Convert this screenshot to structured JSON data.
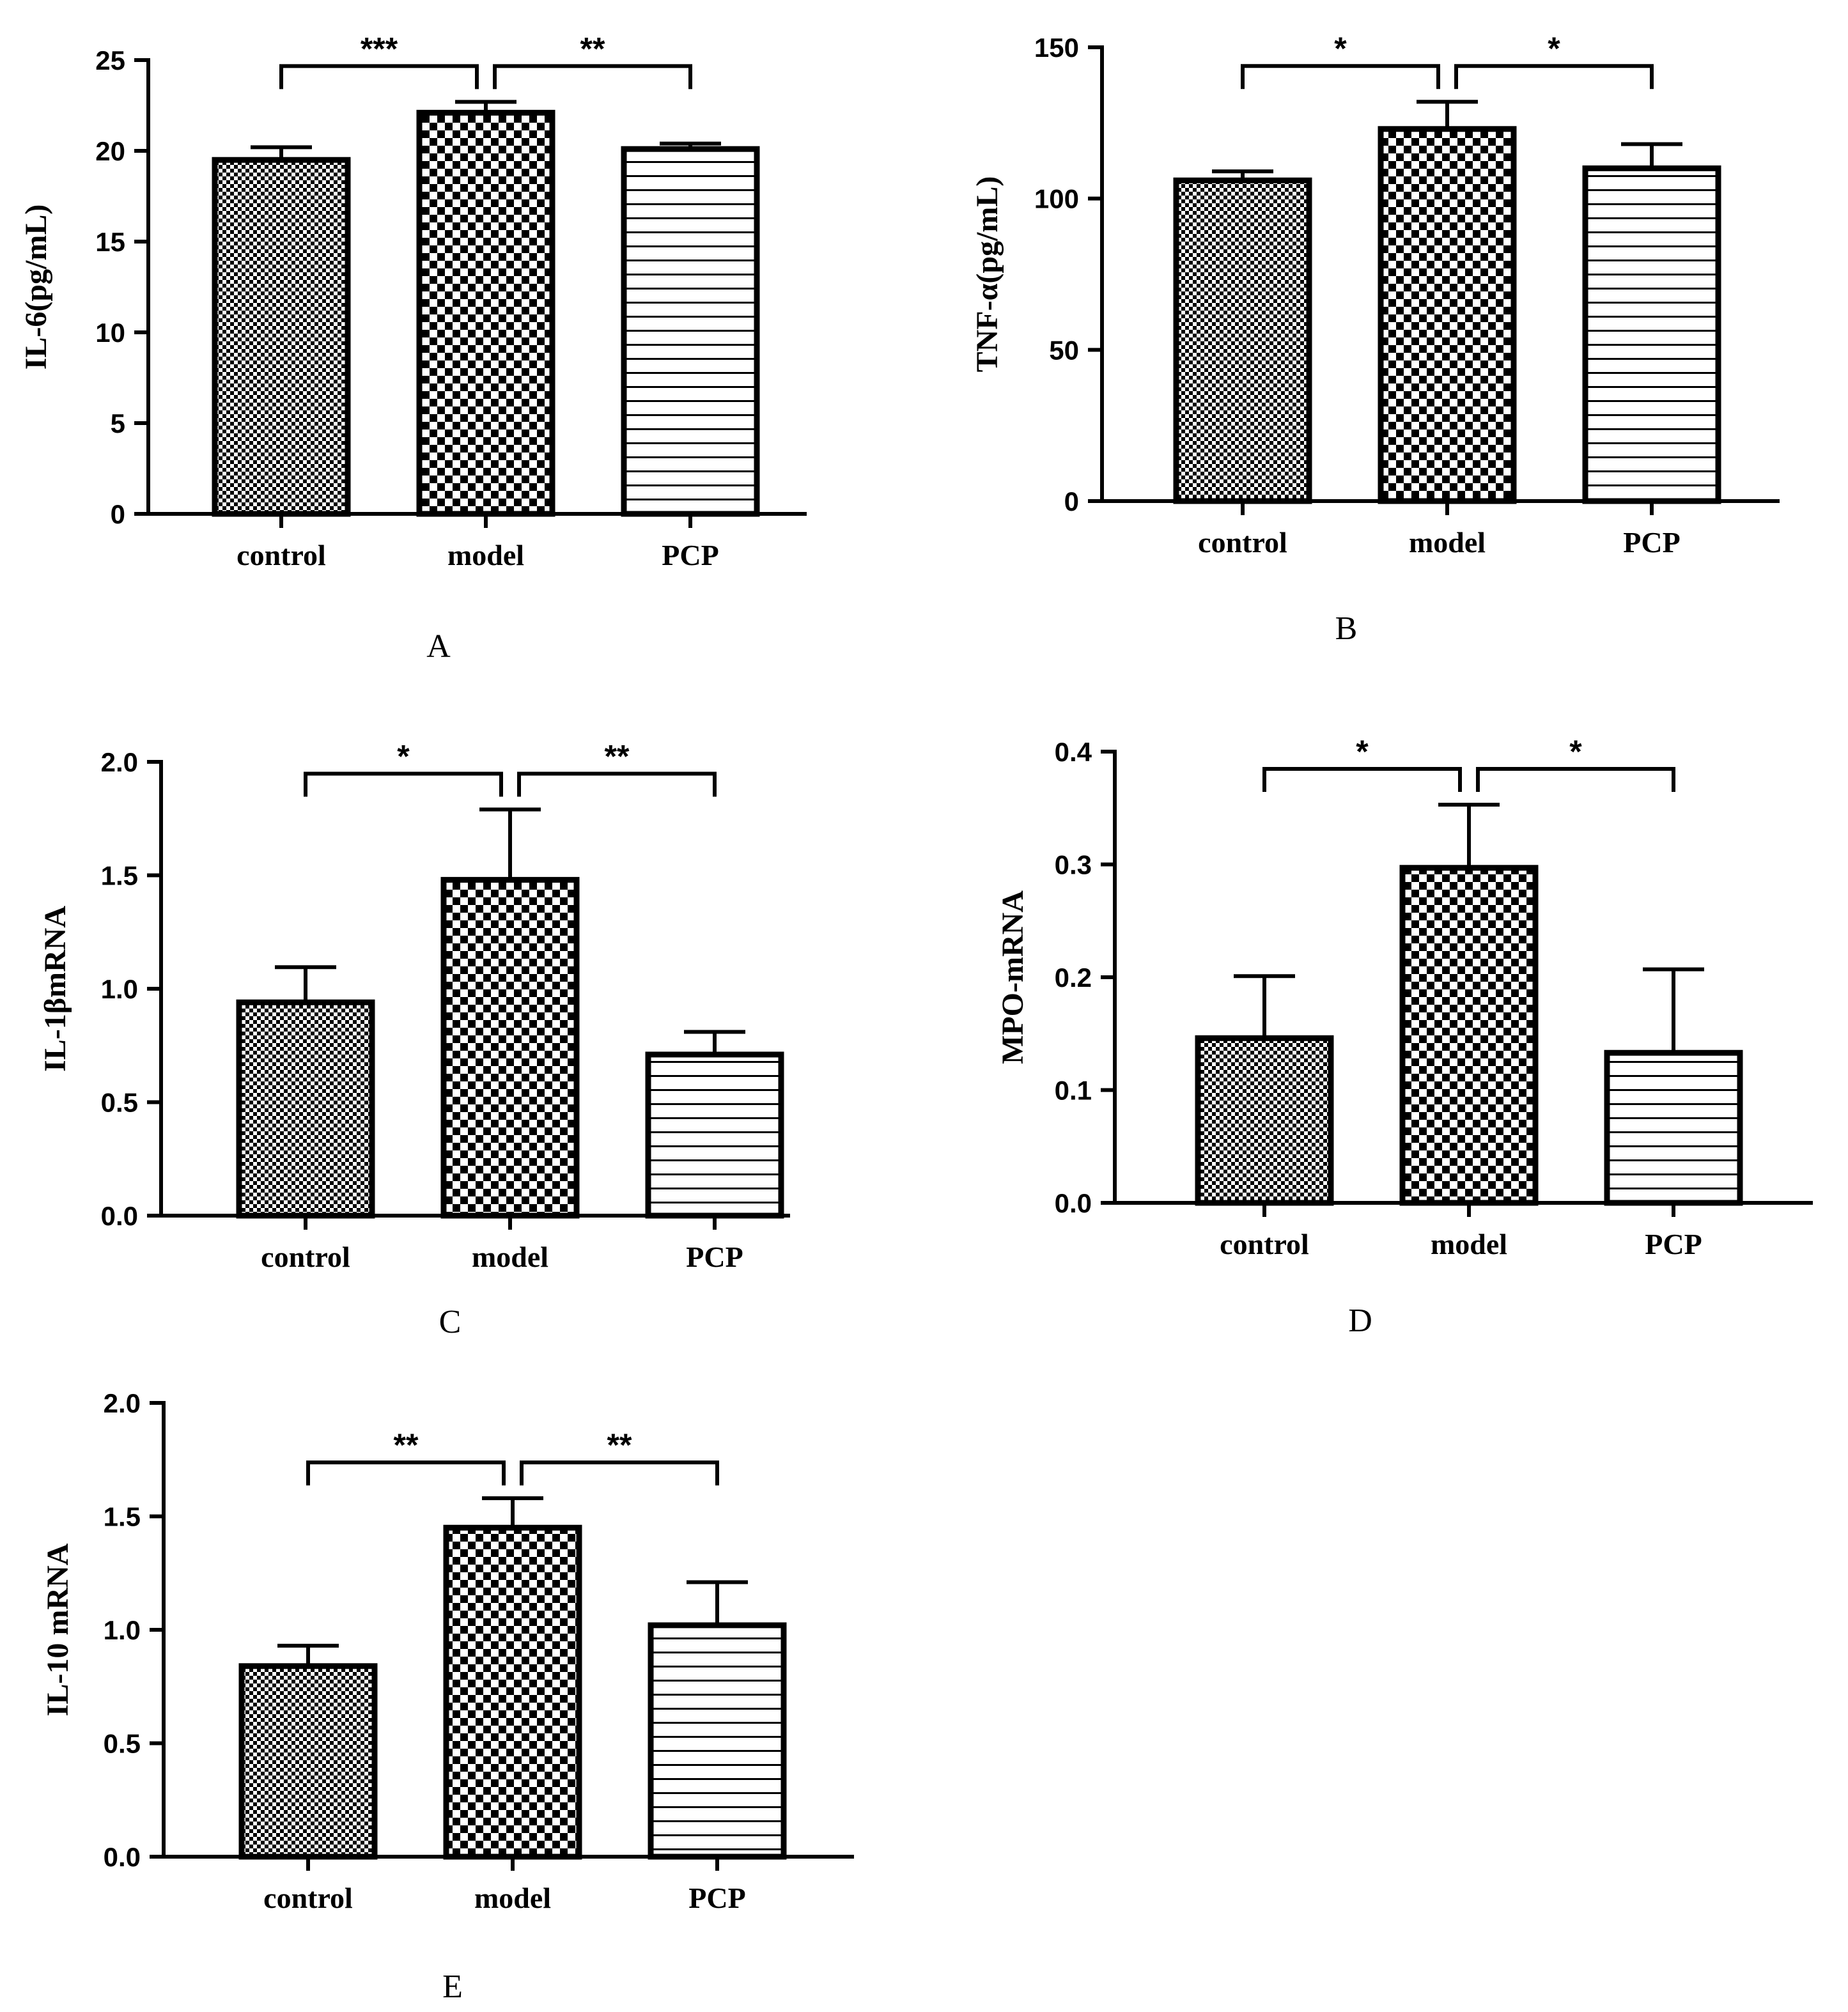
{
  "figure": {
    "colors": {
      "ink": "#000000",
      "paper": "#ffffff"
    }
  },
  "chart_data": [
    {
      "type": "bar",
      "panel_label": "A",
      "categories": [
        "control",
        "model",
        "PCP"
      ],
      "values": [
        19.5,
        22.1,
        20.1
      ],
      "errors": [
        0.7,
        0.6,
        0.3
      ],
      "patterns": [
        "fine-check",
        "coarse-check",
        "h-lines"
      ],
      "ylabel": "IL-6(pg/mL)",
      "ylim": [
        0,
        25
      ],
      "yticks": [
        0,
        5,
        10,
        15,
        20,
        25
      ],
      "tick_labels": [
        "0",
        "5",
        "10",
        "15",
        "20",
        "25"
      ],
      "significance": [
        {
          "from": 0,
          "to": 1,
          "label": "***"
        },
        {
          "from": 1,
          "to": 2,
          "label": "**"
        }
      ]
    },
    {
      "type": "bar",
      "panel_label": "B",
      "categories": [
        "control",
        "model",
        "PCP"
      ],
      "values": [
        106,
        123,
        110
      ],
      "errors": [
        3,
        9,
        8
      ],
      "patterns": [
        "fine-check",
        "coarse-check",
        "h-lines"
      ],
      "ylabel": "TNF-α(pg/mL)",
      "ylim": [
        0,
        150
      ],
      "yticks": [
        0,
        50,
        100,
        150
      ],
      "tick_labels": [
        "0",
        "50",
        "100",
        "150"
      ],
      "significance": [
        {
          "from": 0,
          "to": 1,
          "label": "*"
        },
        {
          "from": 1,
          "to": 2,
          "label": "*"
        }
      ]
    },
    {
      "type": "bar",
      "panel_label": "C",
      "categories": [
        "control",
        "model",
        "PCP"
      ],
      "values": [
        0.94,
        1.48,
        0.71
      ],
      "errors": [
        0.155,
        0.31,
        0.1
      ],
      "patterns": [
        "fine-check",
        "coarse-check",
        "h-lines"
      ],
      "ylabel": "IL-1βmRNA",
      "ylim": [
        0,
        2.0
      ],
      "yticks": [
        0,
        0.5,
        1.0,
        1.5,
        2.0
      ],
      "tick_labels": [
        "0.0",
        "0.5",
        "1.0",
        "1.5",
        "2.0"
      ],
      "significance": [
        {
          "from": 0,
          "to": 1,
          "label": "*"
        },
        {
          "from": 1,
          "to": 2,
          "label": "**"
        }
      ]
    },
    {
      "type": "bar",
      "panel_label": "D",
      "categories": [
        "control",
        "model",
        "PCP"
      ],
      "values": [
        0.146,
        0.297,
        0.133
      ],
      "errors": [
        0.055,
        0.056,
        0.074
      ],
      "patterns": [
        "fine-check",
        "coarse-check",
        "h-lines"
      ],
      "ylabel": "MPO-mRNA",
      "ylim": [
        0,
        0.4
      ],
      "yticks": [
        0,
        0.1,
        0.2,
        0.3,
        0.4
      ],
      "tick_labels": [
        "0.0",
        "0.1",
        "0.2",
        "0.3",
        "0.4"
      ],
      "significance": [
        {
          "from": 0,
          "to": 1,
          "label": "*"
        },
        {
          "from": 1,
          "to": 2,
          "label": "*"
        }
      ]
    },
    {
      "type": "bar",
      "panel_label": "E",
      "categories": [
        "control",
        "model",
        "PCP"
      ],
      "values": [
        0.84,
        1.45,
        1.02
      ],
      "errors": [
        0.09,
        0.13,
        0.19
      ],
      "patterns": [
        "fine-check",
        "coarse-check",
        "h-lines"
      ],
      "ylabel": "IL-10 mRNA",
      "ylim": [
        0,
        2.0
      ],
      "yticks": [
        0,
        0.5,
        1.0,
        1.5,
        2.0
      ],
      "tick_labels": [
        "0.0",
        "0.5",
        "1.0",
        "1.5",
        "2.0"
      ],
      "significance": [
        {
          "from": 0,
          "to": 1,
          "label": "**"
        },
        {
          "from": 1,
          "to": 2,
          "label": "**"
        }
      ]
    }
  ]
}
